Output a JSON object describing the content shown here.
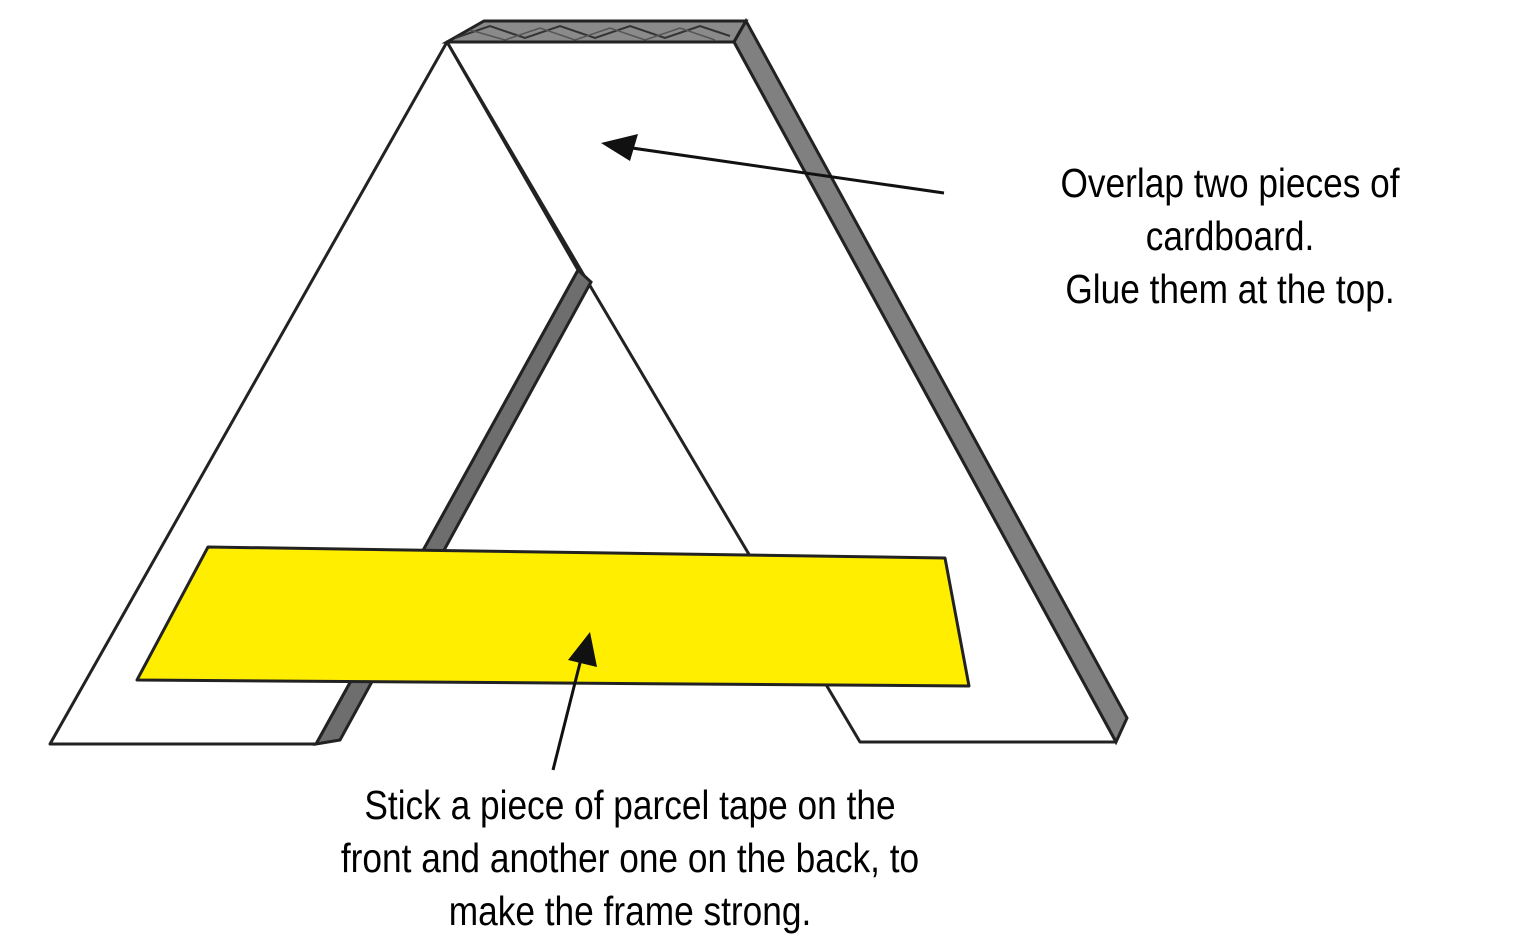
{
  "annotations": {
    "cardboard_note": {
      "lines": [
        "Overlap two pieces of",
        "cardboard.",
        "Glue them at the top."
      ]
    },
    "tape_note": {
      "lines": [
        "Stick a piece of parcel tape on the",
        "front and another one on the back, to",
        "make the frame strong."
      ]
    }
  },
  "colors": {
    "cardboard_face": "#ffffff",
    "cardboard_edge": "#808080",
    "cardboard_edge_dark": "#555555",
    "tape": "#ffee00",
    "outline": "#222222",
    "text": "#000000"
  }
}
